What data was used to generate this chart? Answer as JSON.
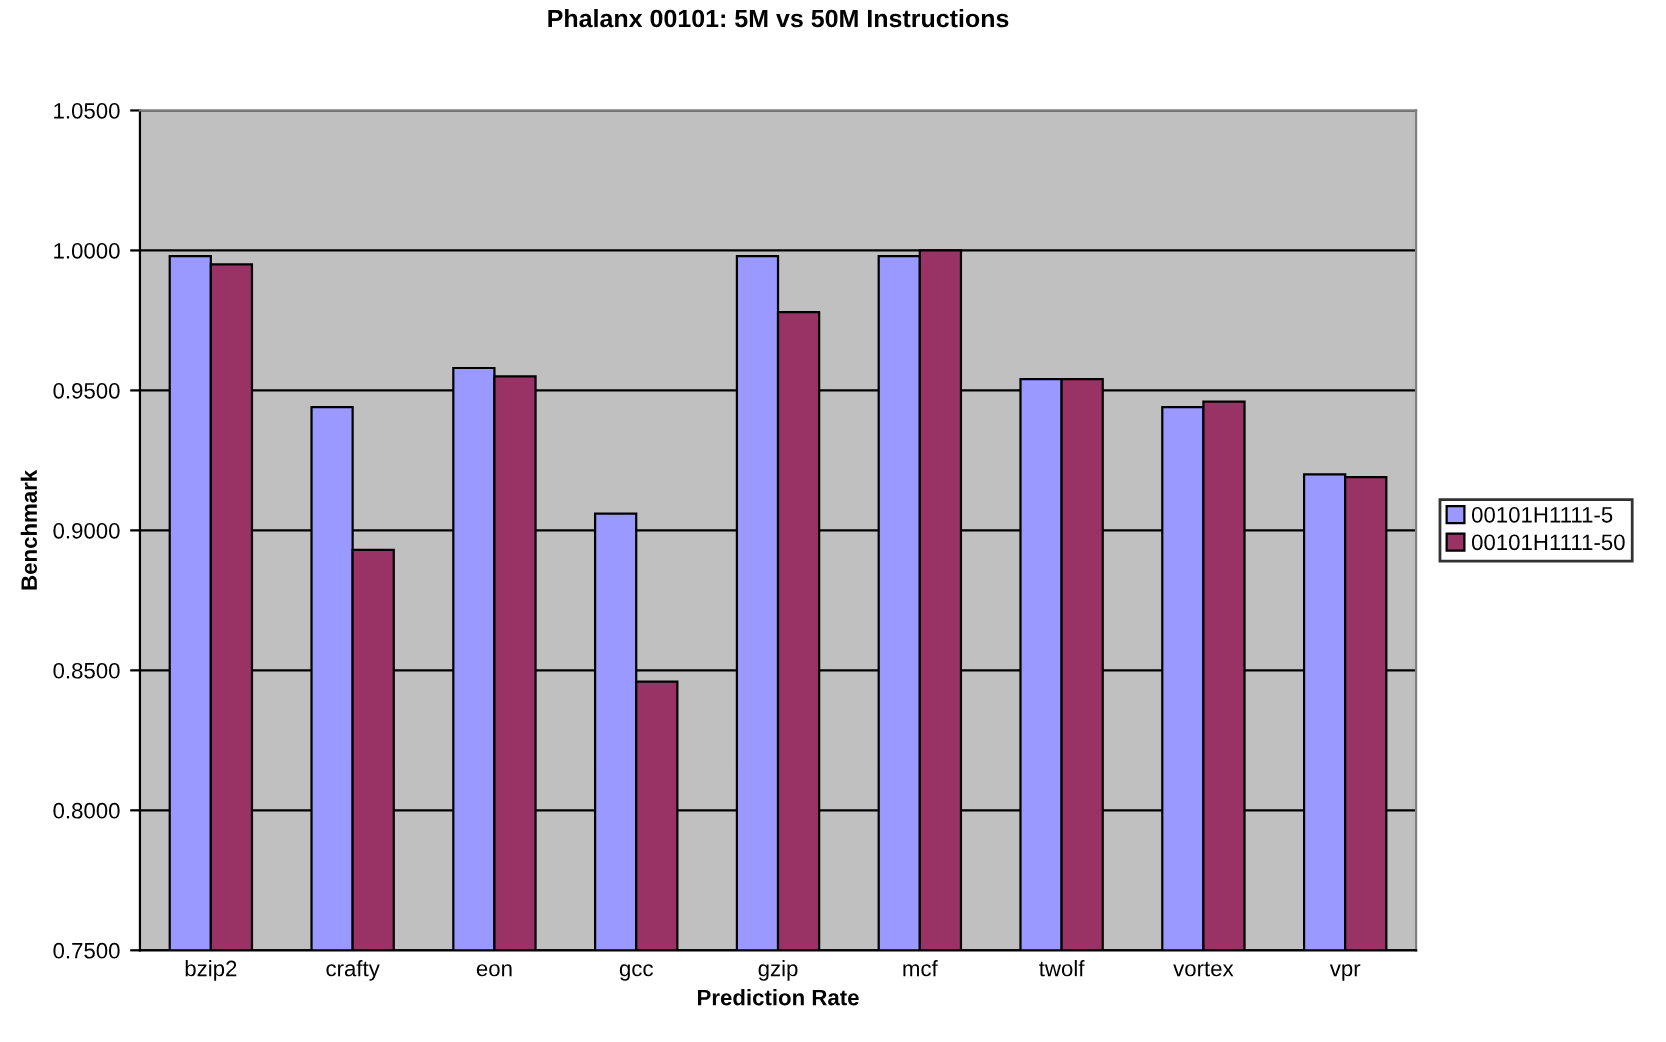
{
  "chart_data": {
    "type": "bar",
    "title": "Phalanx 00101: 5M vs 50M Instructions",
    "xlabel": "Prediction Rate",
    "ylabel": "Benchmark",
    "categories": [
      "bzip2",
      "crafty",
      "eon",
      "gcc",
      "gzip",
      "mcf",
      "twolf",
      "vortex",
      "vpr"
    ],
    "series": [
      {
        "name": "00101H1111-5",
        "color": "#9999ff",
        "values": [
          0.998,
          0.944,
          0.958,
          0.906,
          0.998,
          0.998,
          0.954,
          0.944,
          0.92
        ]
      },
      {
        "name": "00101H1111-50",
        "color": "#993366",
        "values": [
          0.995,
          0.893,
          0.955,
          0.846,
          0.978,
          1.0,
          0.954,
          0.946,
          0.919
        ]
      }
    ],
    "ylim": [
      0.75,
      1.05
    ],
    "yticks": [
      {
        "value": 0.75,
        "label": "0.7500"
      },
      {
        "value": 0.8,
        "label": "0.8000"
      },
      {
        "value": 0.85,
        "label": "0.8500"
      },
      {
        "value": 0.9,
        "label": "0.9000"
      },
      {
        "value": 0.95,
        "label": "0.9500"
      },
      {
        "value": 1.0,
        "label": "1.0000"
      },
      {
        "value": 1.05,
        "label": "1.0500"
      }
    ],
    "grid": "y",
    "legend": "right"
  }
}
